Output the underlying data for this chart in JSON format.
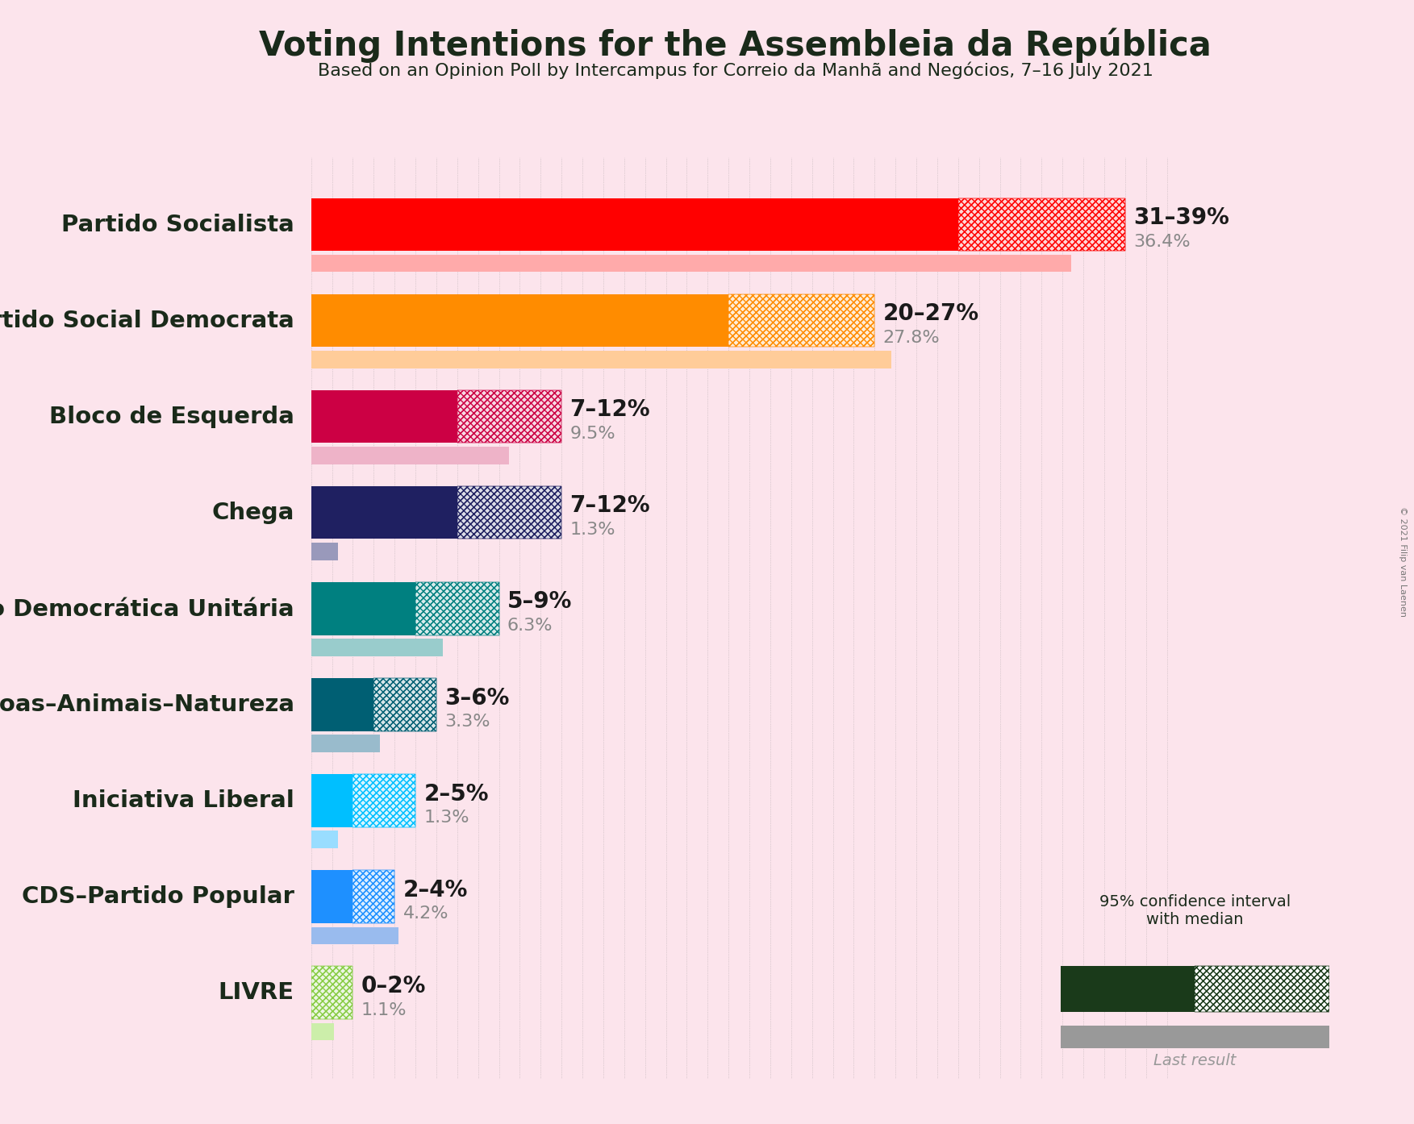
{
  "title": "Voting Intentions for the Assembleia da República",
  "subtitle": "Based on an Opinion Poll by Intercampus for Correio da Manhã and Negócios, 7–16 July 2021",
  "copyright": "© 2021 Filip van Laenen",
  "background_color": "#fce4ec",
  "parties": [
    {
      "name": "Partido Socialista",
      "median": 31,
      "ci_low": 31,
      "ci_high": 39,
      "last_result": 36.4,
      "color": "#FF0000",
      "color_light": "#FFAAAA",
      "label": "31–39%",
      "label2": "36.4%"
    },
    {
      "name": "Partido Social Democrata",
      "median": 20,
      "ci_low": 20,
      "ci_high": 27,
      "last_result": 27.8,
      "color": "#FF8C00",
      "color_light": "#FFCC99",
      "label": "20–27%",
      "label2": "27.8%"
    },
    {
      "name": "Bloco de Esquerda",
      "median": 7,
      "ci_low": 7,
      "ci_high": 12,
      "last_result": 9.5,
      "color": "#CC0044",
      "color_light": "#EEB3C8",
      "label": "7–12%",
      "label2": "9.5%"
    },
    {
      "name": "Chega",
      "median": 7,
      "ci_low": 7,
      "ci_high": 12,
      "last_result": 1.3,
      "color": "#1F2061",
      "color_light": "#9999BB",
      "label": "7–12%",
      "label2": "1.3%"
    },
    {
      "name": "Coligação Democrática Unitária",
      "median": 5,
      "ci_low": 5,
      "ci_high": 9,
      "last_result": 6.3,
      "color": "#008080",
      "color_light": "#99CCCC",
      "label": "5–9%",
      "label2": "6.3%"
    },
    {
      "name": "Pessoas–Animais–Natureza",
      "median": 3,
      "ci_low": 3,
      "ci_high": 6,
      "last_result": 3.3,
      "color": "#005F73",
      "color_light": "#99BBCC",
      "label": "3–6%",
      "label2": "3.3%"
    },
    {
      "name": "Iniciativa Liberal",
      "median": 2,
      "ci_low": 2,
      "ci_high": 5,
      "last_result": 1.3,
      "color": "#00BFFF",
      "color_light": "#99DDFF",
      "label": "2–5%",
      "label2": "1.3%"
    },
    {
      "name": "CDS–Partido Popular",
      "median": 2,
      "ci_low": 2,
      "ci_high": 4,
      "last_result": 4.2,
      "color": "#1E90FF",
      "color_light": "#99BBEE",
      "label": "2–4%",
      "label2": "4.2%"
    },
    {
      "name": "LIVRE",
      "median": 0,
      "ci_low": 0,
      "ci_high": 2,
      "last_result": 1.1,
      "color": "#88CC44",
      "color_light": "#CCEEAA",
      "label": "0–2%",
      "label2": "1.1%"
    }
  ],
  "x_max": 42,
  "main_bar_height": 0.55,
  "last_bar_height": 0.18,
  "label_fontsize": 20,
  "party_fontsize": 21,
  "title_fontsize": 30,
  "subtitle_fontsize": 16
}
